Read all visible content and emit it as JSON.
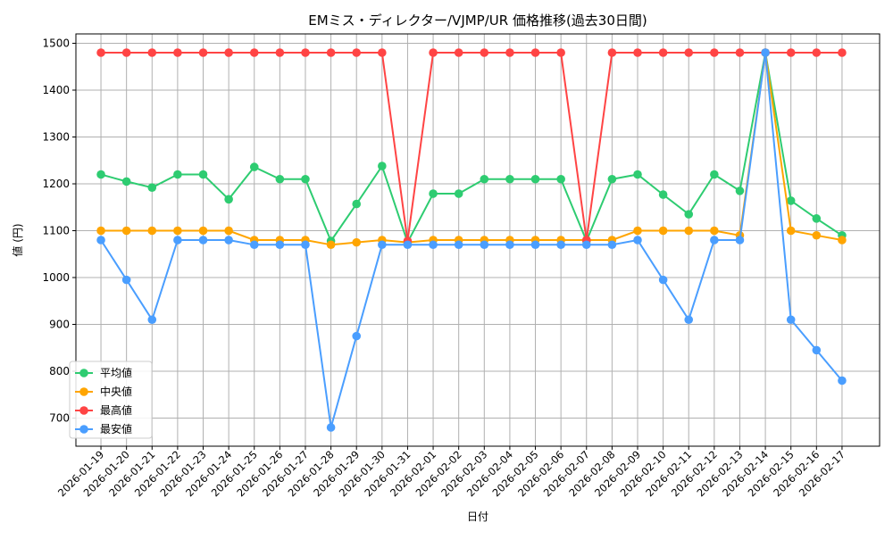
{
  "chart_data": {
    "type": "line",
    "title": "EMミス・ディレクター/VJMP/UR 価格推移(過去30日間)",
    "xlabel": "日付",
    "ylabel": "値 (円)",
    "ylim": [
      640,
      1520
    ],
    "yticks": [
      700,
      800,
      900,
      1000,
      1100,
      1200,
      1300,
      1400,
      1500
    ],
    "grid": true,
    "legend_position": "bottom-left",
    "categories": [
      "2026-01-19",
      "2026-01-20",
      "2026-01-21",
      "2026-01-22",
      "2026-01-23",
      "2026-01-24",
      "2026-01-25",
      "2026-01-26",
      "2026-01-27",
      "2026-01-28",
      "2026-01-29",
      "2026-01-30",
      "2026-01-31",
      "2026-02-01",
      "2026-02-02",
      "2026-02-03",
      "2026-02-04",
      "2026-02-05",
      "2026-02-06",
      "2026-02-07",
      "2026-02-08",
      "2026-02-09",
      "2026-02-10",
      "2026-02-11",
      "2026-02-12",
      "2026-02-13",
      "2026-02-14",
      "2026-02-15",
      "2026-02-16",
      "2026-02-17"
    ],
    "series": [
      {
        "name": "平均値",
        "color": "#2ecc71",
        "values": [
          1220,
          1205,
          1192,
          1220,
          1220,
          1167,
          1236,
          1210,
          1210,
          1078,
          1157,
          1238,
          1075,
          1179,
          1179,
          1210,
          1210,
          1210,
          1210,
          1078,
          1210,
          1220,
          1177,
          1135,
          1220,
          1185,
          1480,
          1164,
          1126,
          1090
        ]
      },
      {
        "name": "中央値",
        "color": "#ffa500",
        "values": [
          1100,
          1100,
          1100,
          1100,
          1100,
          1100,
          1080,
          1080,
          1080,
          1070,
          1075,
          1080,
          1075,
          1080,
          1080,
          1080,
          1080,
          1080,
          1080,
          1080,
          1080,
          1100,
          1100,
          1100,
          1100,
          1090,
          1480,
          1100,
          1090,
          1080
        ]
      },
      {
        "name": "最高値",
        "color": "#ff4444",
        "values": [
          1480,
          1480,
          1480,
          1480,
          1480,
          1480,
          1480,
          1480,
          1480,
          1480,
          1480,
          1480,
          1078,
          1480,
          1480,
          1480,
          1480,
          1480,
          1480,
          1080,
          1480,
          1480,
          1480,
          1480,
          1480,
          1480,
          1480,
          1480,
          1480,
          1480
        ]
      },
      {
        "name": "最安値",
        "color": "#4a9eff",
        "values": [
          1080,
          995,
          910,
          1080,
          1080,
          1080,
          1070,
          1070,
          1070,
          680,
          875,
          1070,
          1070,
          1070,
          1070,
          1070,
          1070,
          1070,
          1070,
          1070,
          1070,
          1080,
          995,
          910,
          1080,
          1080,
          1480,
          910,
          845,
          780
        ]
      }
    ]
  }
}
